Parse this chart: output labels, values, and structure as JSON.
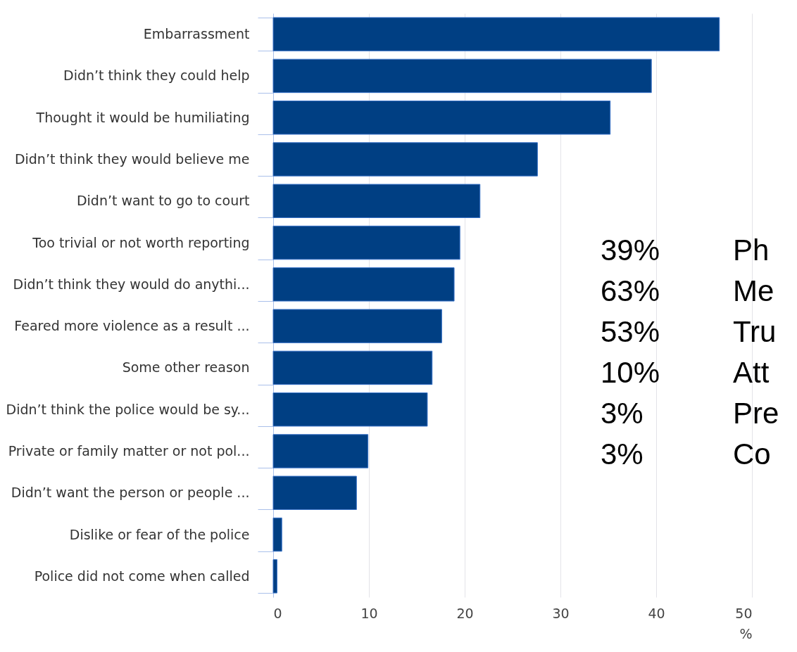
{
  "chart_data": {
    "type": "bar",
    "orientation": "horizontal",
    "xlabel": "%",
    "categories": [
      "Embarrassment",
      "Didn’t think they could help",
      "Thought it would be humiliating",
      "Didn’t think they would believe me",
      "Didn’t want to go to court",
      "Too trivial or not worth reporting",
      "Didn’t think they would do anythi...",
      "Feared more violence as a result ...",
      "Some other reason",
      "Didn’t think the police would be sy...",
      "Private or family matter or not pol...",
      "Didn’t want the person or people ...",
      "Dislike or fear of the police",
      "Police did not come when called"
    ],
    "values": [
      46.6,
      39.5,
      35.2,
      27.6,
      21.6,
      19.5,
      18.9,
      17.6,
      16.6,
      16.1,
      9.9,
      8.7,
      0.9,
      0.4
    ],
    "color": "#003f83",
    "xlim": [
      0,
      50
    ],
    "xticks": [
      0,
      10,
      20,
      30,
      40,
      50
    ],
    "grid": "x",
    "annotations": [
      "39%",
      "Ph",
      "63%",
      "Me",
      "53%",
      "Tru",
      "10%",
      "Att",
      "3%",
      "Pre",
      "3%",
      "Co"
    ]
  }
}
